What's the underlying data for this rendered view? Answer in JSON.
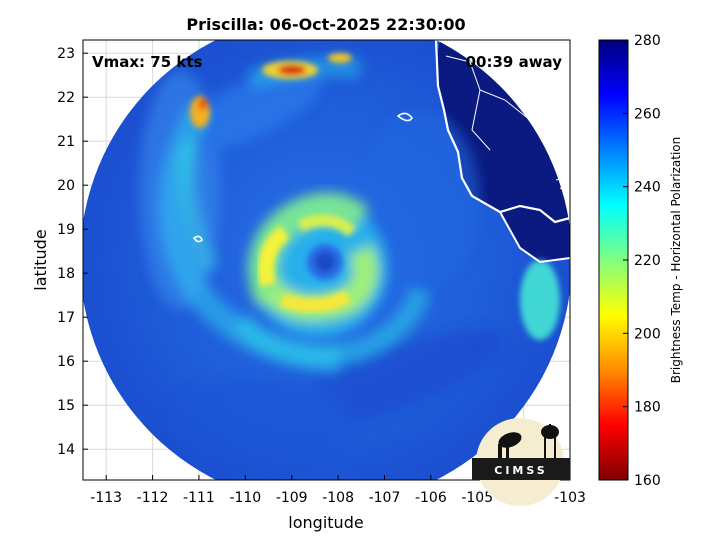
{
  "title": "Priscilla: 06-Oct-2025 22:30:00",
  "annotations": {
    "vmax": "Vmax: 75 kts",
    "time_away": "00:39 away"
  },
  "map": {
    "xlabel": "longitude",
    "ylabel": "latitude",
    "xlim": [
      -113.5,
      -103
    ],
    "ylim": [
      13.3,
      23.3
    ],
    "x_ticks": [
      "-113",
      "-112",
      "-111",
      "-110",
      "-109",
      "-108",
      "-107",
      "-106",
      "-105",
      "-104",
      "-103"
    ],
    "y_ticks": [
      "14",
      "15",
      "16",
      "17",
      "18",
      "19",
      "20",
      "21",
      "22",
      "23"
    ],
    "grid": true,
    "storm_center": {
      "lon": -108.3,
      "lat": 18.4
    }
  },
  "colorbar": {
    "label": "Brightness Temp - Horizontal Polarization",
    "min": 160,
    "max": 280,
    "ticks": [
      "280",
      "260",
      "240",
      "220",
      "200",
      "180",
      "160"
    ],
    "colormap": [
      "#7f0000",
      "#ff0000",
      "#ff8c00",
      "#ffff00",
      "#80ff80",
      "#00ffff",
      "#0080ff",
      "#0000ff",
      "#00007f"
    ]
  },
  "logo": {
    "text": "CIMSS"
  },
  "colors": {
    "ocean_scan": "#1e5bd8",
    "land": "#0a1a80",
    "coast": "#ffffff",
    "grid": "#d9d9d9"
  }
}
